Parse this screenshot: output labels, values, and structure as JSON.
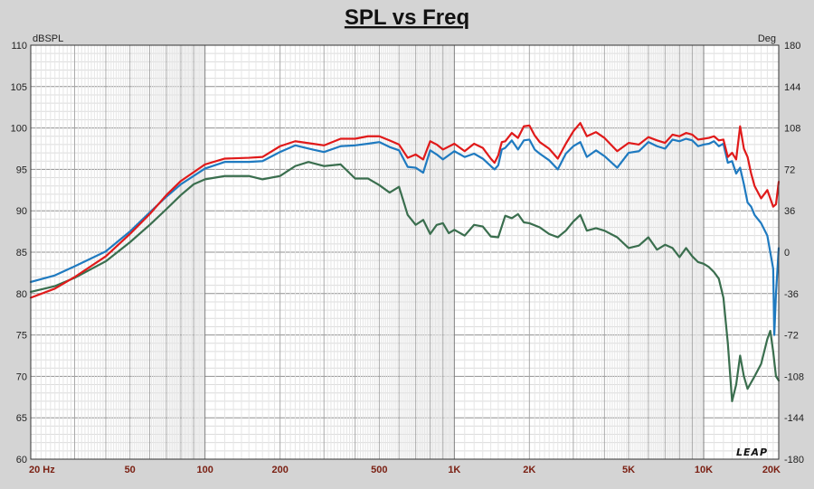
{
  "chart_data": {
    "type": "line",
    "title": "SPL vs Freq",
    "ylabel": "dBSPL",
    "y2label": "Deg",
    "x_scale": "log",
    "xlim": [
      20,
      20000
    ],
    "ylim": [
      60,
      110
    ],
    "y2lim": [
      -180,
      180
    ],
    "y_ticks": [
      60,
      65,
      70,
      75,
      80,
      85,
      90,
      95,
      100,
      105,
      110
    ],
    "y2_ticks": [
      -180,
      -144,
      -108,
      -72,
      -36,
      0,
      36,
      72,
      108,
      144,
      180
    ],
    "x_ticks": [
      {
        "value": 20,
        "label": "20  Hz"
      },
      {
        "value": 50,
        "label": "50"
      },
      {
        "value": 100,
        "label": "100"
      },
      {
        "value": 200,
        "label": "200"
      },
      {
        "value": 500,
        "label": "500"
      },
      {
        "value": 1000,
        "label": "1K"
      },
      {
        "value": 2000,
        "label": "2K"
      },
      {
        "value": 5000,
        "label": "5K"
      },
      {
        "value": 10000,
        "label": "10K"
      },
      {
        "value": 20000,
        "label": "20K"
      }
    ],
    "grid": true,
    "series": [
      {
        "name": "red",
        "color": "#e01a1a",
        "points": [
          [
            20,
            79.5
          ],
          [
            25,
            80.6
          ],
          [
            30,
            82.0
          ],
          [
            40,
            84.5
          ],
          [
            50,
            87.2
          ],
          [
            60,
            89.6
          ],
          [
            70,
            91.9
          ],
          [
            80,
            93.6
          ],
          [
            100,
            95.6
          ],
          [
            120,
            96.3
          ],
          [
            150,
            96.4
          ],
          [
            170,
            96.5
          ],
          [
            200,
            97.8
          ],
          [
            230,
            98.4
          ],
          [
            270,
            98.1
          ],
          [
            300,
            97.9
          ],
          [
            350,
            98.7
          ],
          [
            400,
            98.7
          ],
          [
            450,
            99.0
          ],
          [
            500,
            99.0
          ],
          [
            550,
            98.5
          ],
          [
            600,
            98.0
          ],
          [
            650,
            96.4
          ],
          [
            700,
            96.8
          ],
          [
            750,
            96.2
          ],
          [
            800,
            98.4
          ],
          [
            850,
            98.0
          ],
          [
            900,
            97.4
          ],
          [
            1000,
            98.1
          ],
          [
            1100,
            97.2
          ],
          [
            1200,
            98.1
          ],
          [
            1300,
            97.6
          ],
          [
            1400,
            96.3
          ],
          [
            1450,
            95.8
          ],
          [
            1500,
            96.7
          ],
          [
            1550,
            98.3
          ],
          [
            1600,
            98.4
          ],
          [
            1700,
            99.4
          ],
          [
            1800,
            98.8
          ],
          [
            1900,
            100.2
          ],
          [
            2000,
            100.3
          ],
          [
            2100,
            99.1
          ],
          [
            2200,
            98.3
          ],
          [
            2400,
            97.5
          ],
          [
            2600,
            96.3
          ],
          [
            2800,
            98.1
          ],
          [
            3000,
            99.6
          ],
          [
            3200,
            100.6
          ],
          [
            3400,
            99.0
          ],
          [
            3700,
            99.5
          ],
          [
            4000,
            98.8
          ],
          [
            4500,
            97.2
          ],
          [
            5000,
            98.2
          ],
          [
            5500,
            98.0
          ],
          [
            6000,
            98.9
          ],
          [
            6500,
            98.5
          ],
          [
            7000,
            98.2
          ],
          [
            7500,
            99.2
          ],
          [
            8000,
            99.0
          ],
          [
            8500,
            99.4
          ],
          [
            9000,
            99.2
          ],
          [
            9500,
            98.6
          ],
          [
            10000,
            98.7
          ],
          [
            10500,
            98.8
          ],
          [
            11000,
            99.0
          ],
          [
            11500,
            98.5
          ],
          [
            12000,
            98.6
          ],
          [
            12500,
            96.5
          ],
          [
            13000,
            97.0
          ],
          [
            13500,
            96.2
          ],
          [
            14000,
            100.2
          ],
          [
            14500,
            97.5
          ],
          [
            15000,
            96.5
          ],
          [
            15500,
            94.5
          ],
          [
            16000,
            93.0
          ],
          [
            17000,
            91.5
          ],
          [
            18000,
            92.5
          ],
          [
            19000,
            90.5
          ],
          [
            19500,
            90.8
          ],
          [
            20000,
            93.5
          ]
        ]
      },
      {
        "name": "blue",
        "color": "#1f7ac0",
        "points": [
          [
            20,
            81.4
          ],
          [
            25,
            82.2
          ],
          [
            30,
            83.3
          ],
          [
            40,
            85.1
          ],
          [
            50,
            87.5
          ],
          [
            60,
            89.8
          ],
          [
            70,
            91.7
          ],
          [
            80,
            93.2
          ],
          [
            100,
            95.1
          ],
          [
            120,
            95.9
          ],
          [
            150,
            95.9
          ],
          [
            170,
            96.0
          ],
          [
            200,
            97.1
          ],
          [
            230,
            97.9
          ],
          [
            270,
            97.4
          ],
          [
            300,
            97.1
          ],
          [
            350,
            97.8
          ],
          [
            400,
            97.9
          ],
          [
            450,
            98.1
          ],
          [
            500,
            98.3
          ],
          [
            550,
            97.7
          ],
          [
            600,
            97.3
          ],
          [
            650,
            95.3
          ],
          [
            700,
            95.2
          ],
          [
            750,
            94.6
          ],
          [
            800,
            97.3
          ],
          [
            850,
            96.8
          ],
          [
            900,
            96.2
          ],
          [
            1000,
            97.2
          ],
          [
            1100,
            96.5
          ],
          [
            1200,
            96.9
          ],
          [
            1300,
            96.3
          ],
          [
            1400,
            95.4
          ],
          [
            1450,
            95.0
          ],
          [
            1500,
            95.5
          ],
          [
            1550,
            97.4
          ],
          [
            1600,
            97.6
          ],
          [
            1700,
            98.5
          ],
          [
            1800,
            97.4
          ],
          [
            1900,
            98.5
          ],
          [
            2000,
            98.6
          ],
          [
            2100,
            97.4
          ],
          [
            2200,
            96.9
          ],
          [
            2400,
            96.1
          ],
          [
            2600,
            95.0
          ],
          [
            2800,
            96.9
          ],
          [
            3000,
            97.8
          ],
          [
            3200,
            98.3
          ],
          [
            3400,
            96.5
          ],
          [
            3700,
            97.3
          ],
          [
            4000,
            96.6
          ],
          [
            4500,
            95.2
          ],
          [
            5000,
            97.0
          ],
          [
            5500,
            97.2
          ],
          [
            6000,
            98.3
          ],
          [
            6500,
            97.8
          ],
          [
            7000,
            97.5
          ],
          [
            7500,
            98.6
          ],
          [
            8000,
            98.4
          ],
          [
            8500,
            98.7
          ],
          [
            9000,
            98.5
          ],
          [
            9500,
            97.8
          ],
          [
            10000,
            98.0
          ],
          [
            10500,
            98.1
          ],
          [
            11000,
            98.4
          ],
          [
            11500,
            97.8
          ],
          [
            12000,
            98.1
          ],
          [
            12500,
            95.8
          ],
          [
            13000,
            96.0
          ],
          [
            13500,
            94.5
          ],
          [
            14000,
            95.2
          ],
          [
            14500,
            93.2
          ],
          [
            15000,
            91.0
          ],
          [
            15500,
            90.5
          ],
          [
            16000,
            89.5
          ],
          [
            17000,
            88.5
          ],
          [
            18000,
            87.0
          ],
          [
            19000,
            83.0
          ],
          [
            19200,
            75.0
          ],
          [
            19500,
            80.0
          ],
          [
            20000,
            85.5
          ]
        ]
      },
      {
        "name": "green",
        "color": "#3a6e4e",
        "points": [
          [
            20,
            80.2
          ],
          [
            25,
            80.9
          ],
          [
            30,
            81.9
          ],
          [
            40,
            83.9
          ],
          [
            50,
            86.2
          ],
          [
            60,
            88.3
          ],
          [
            70,
            90.2
          ],
          [
            80,
            91.9
          ],
          [
            90,
            93.2
          ],
          [
            100,
            93.8
          ],
          [
            120,
            94.2
          ],
          [
            150,
            94.2
          ],
          [
            170,
            93.8
          ],
          [
            200,
            94.2
          ],
          [
            230,
            95.4
          ],
          [
            260,
            95.9
          ],
          [
            300,
            95.4
          ],
          [
            350,
            95.6
          ],
          [
            400,
            93.9
          ],
          [
            450,
            93.9
          ],
          [
            500,
            93.1
          ],
          [
            550,
            92.2
          ],
          [
            600,
            92.9
          ],
          [
            650,
            89.5
          ],
          [
            700,
            88.3
          ],
          [
            750,
            88.9
          ],
          [
            800,
            87.2
          ],
          [
            850,
            88.3
          ],
          [
            900,
            88.5
          ],
          [
            950,
            87.3
          ],
          [
            1000,
            87.7
          ],
          [
            1100,
            87.0
          ],
          [
            1200,
            88.3
          ],
          [
            1300,
            88.1
          ],
          [
            1400,
            86.9
          ],
          [
            1500,
            86.8
          ],
          [
            1600,
            89.4
          ],
          [
            1700,
            89.1
          ],
          [
            1800,
            89.6
          ],
          [
            1900,
            88.6
          ],
          [
            2000,
            88.5
          ],
          [
            2200,
            88.0
          ],
          [
            2400,
            87.2
          ],
          [
            2600,
            86.8
          ],
          [
            2800,
            87.6
          ],
          [
            3000,
            88.7
          ],
          [
            3200,
            89.5
          ],
          [
            3400,
            87.6
          ],
          [
            3700,
            87.9
          ],
          [
            4000,
            87.6
          ],
          [
            4500,
            86.8
          ],
          [
            5000,
            85.5
          ],
          [
            5500,
            85.8
          ],
          [
            6000,
            86.8
          ],
          [
            6500,
            85.3
          ],
          [
            7000,
            85.9
          ],
          [
            7500,
            85.5
          ],
          [
            8000,
            84.4
          ],
          [
            8500,
            85.5
          ],
          [
            9000,
            84.5
          ],
          [
            9500,
            83.8
          ],
          [
            10000,
            83.6
          ],
          [
            10500,
            83.2
          ],
          [
            11000,
            82.6
          ],
          [
            11500,
            81.8
          ],
          [
            12000,
            79.5
          ],
          [
            12500,
            74.0
          ],
          [
            13000,
            67.0
          ],
          [
            13500,
            69.0
          ],
          [
            14000,
            72.5
          ],
          [
            14500,
            70.0
          ],
          [
            15000,
            68.5
          ],
          [
            16000,
            70.0
          ],
          [
            17000,
            71.5
          ],
          [
            18000,
            74.5
          ],
          [
            18500,
            75.5
          ],
          [
            19000,
            73.0
          ],
          [
            19500,
            70.0
          ],
          [
            20000,
            69.5
          ]
        ]
      }
    ]
  },
  "logo_text": "LEAP"
}
